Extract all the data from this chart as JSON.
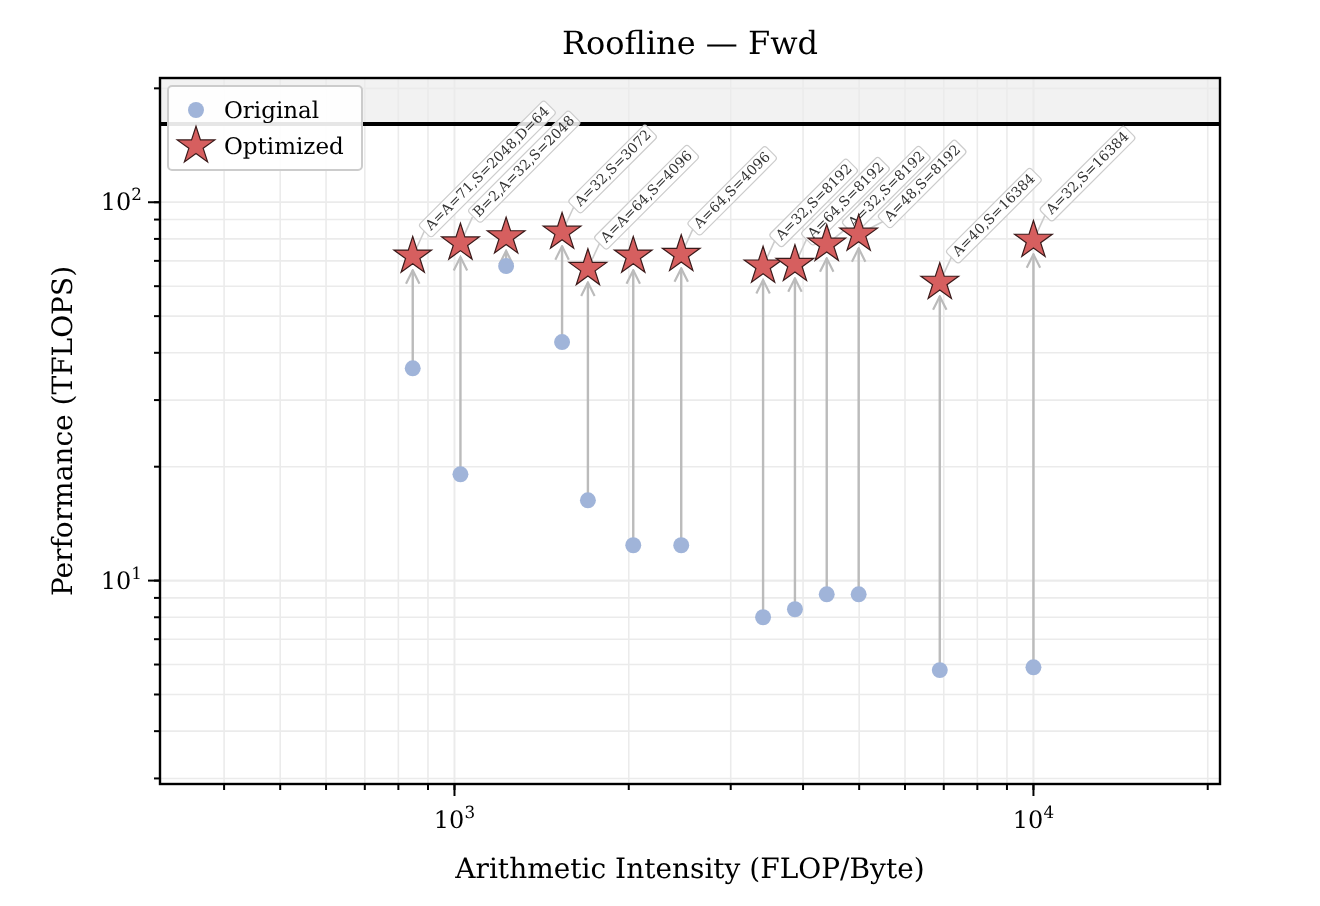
{
  "chart_data": {
    "type": "scatter",
    "title": "Roofline — Fwd",
    "xlabel": "Arithmetic Intensity (FLOP/Byte)",
    "ylabel": "Performance (TFLOPS)",
    "log": "xy",
    "grid": true,
    "legend": "top left",
    "xlim": [
      310,
      21000
    ],
    "ylim": [
      2.9,
      213
    ],
    "xticks": [
      {
        "value": 1000,
        "label": "10$^{3}$"
      },
      {
        "value": 10000,
        "label": "10$^{4}$"
      }
    ],
    "yticks": [
      {
        "value": 10,
        "label": "10$^{1}$"
      },
      {
        "value": 100,
        "label": "10$^{2}$"
      }
    ],
    "x": [
      847,
      1024,
      1228,
      1534,
      1700,
      2036,
      2464,
      3412,
      3873,
      4395,
      4990,
      6890,
      10000
    ],
    "series": [
      {
        "name": "Original",
        "color": "#a0b4d9",
        "marker": "circle",
        "values": [
          36.4,
          19.1,
          67.8,
          42.7,
          16.3,
          12.4,
          12.4,
          8.0,
          8.4,
          9.2,
          9.2,
          5.8,
          5.9
        ]
      },
      {
        "name": "Optimized",
        "color": "#d65f5f",
        "marker": "star",
        "values": [
          72,
          78,
          81,
          83.3,
          66.8,
          72,
          72.8,
          67.8,
          68.5,
          77.4,
          82.3,
          61.4,
          79.3
        ]
      }
    ],
    "ref_lines": [
      {
        "axis": "y",
        "value": 161,
        "color": "#000000"
      }
    ],
    "bands": [
      {
        "axis": "y",
        "from": 161,
        "to": 213,
        "color": "#f2f2f2"
      }
    ],
    "annotations": [
      {
        "text": "A=A=71,S=2048,D=64",
        "x": 847,
        "y": 72
      },
      {
        "text": "B=2,A=32,S=2048",
        "x": 1024,
        "y": 78
      },
      {
        "text": "A=32,S=3072",
        "x": 1534,
        "y": 83.3
      },
      {
        "text": "A=A=64,S=4096",
        "x": 1700,
        "y": 66.8
      },
      {
        "text": "A=64,S=4096",
        "x": 2464,
        "y": 72.8
      },
      {
        "text": "A=32,S=8192",
        "x": 3412,
        "y": 67.8
      },
      {
        "text": "A=64,S=8192",
        "x": 3873,
        "y": 68.5
      },
      {
        "text": "A=32,S=8192",
        "x": 4395,
        "y": 77.4
      },
      {
        "text": "A=48,S=8192",
        "x": 4990,
        "y": 82.3
      },
      {
        "text": "A=40,S=16384",
        "x": 6890,
        "y": 61.4
      },
      {
        "text": "A=32,S=16384",
        "x": 10000,
        "y": 79.3
      }
    ]
  }
}
